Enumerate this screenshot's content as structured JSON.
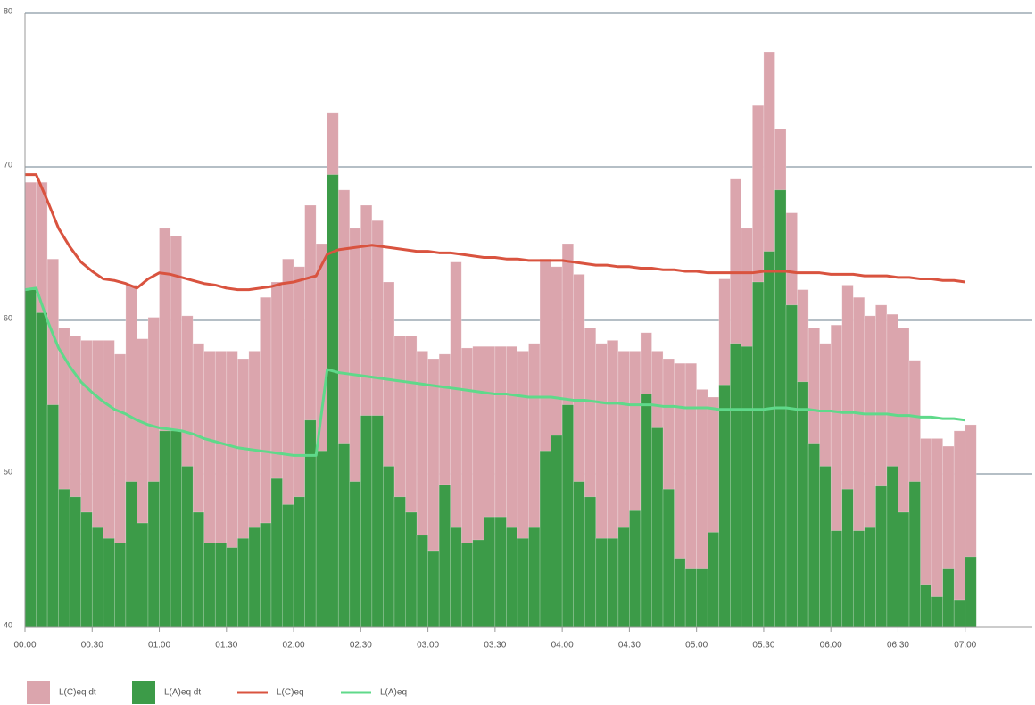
{
  "chart_data": {
    "type": "bar",
    "xlim": [
      0,
      450
    ],
    "ylim": [
      40,
      80
    ],
    "yticks": [
      40,
      50,
      60,
      70,
      80
    ],
    "xticks": [
      {
        "value": 0,
        "label": "00:00"
      },
      {
        "value": 30,
        "label": "00:30"
      },
      {
        "value": 60,
        "label": "01:00"
      },
      {
        "value": 90,
        "label": "01:30"
      },
      {
        "value": 120,
        "label": "02:00"
      },
      {
        "value": 150,
        "label": "02:30"
      },
      {
        "value": 180,
        "label": "03:00"
      },
      {
        "value": 210,
        "label": "03:30"
      },
      {
        "value": 240,
        "label": "04:00"
      },
      {
        "value": 270,
        "label": "04:30"
      },
      {
        "value": 300,
        "label": "05:00"
      },
      {
        "value": 330,
        "label": "05:30"
      },
      {
        "value": 360,
        "label": "06:00"
      },
      {
        "value": 390,
        "label": "06:30"
      },
      {
        "value": 420,
        "label": "07:00"
      }
    ],
    "grid": true,
    "bar_width": 5,
    "x": [
      0,
      5,
      10,
      15,
      20,
      25,
      30,
      35,
      40,
      45,
      50,
      55,
      60,
      65,
      70,
      75,
      80,
      85,
      90,
      95,
      100,
      105,
      110,
      115,
      120,
      125,
      130,
      135,
      140,
      145,
      150,
      155,
      160,
      165,
      170,
      175,
      180,
      185,
      190,
      195,
      200,
      205,
      210,
      215,
      220,
      225,
      230,
      235,
      240,
      245,
      250,
      255,
      260,
      265,
      270,
      275,
      280,
      285,
      290,
      295,
      300,
      305,
      310,
      315,
      320,
      325,
      330,
      335,
      340,
      345,
      350,
      355,
      360,
      365,
      370,
      375,
      380,
      385,
      390,
      395,
      400,
      405,
      410,
      415,
      420
    ],
    "series": [
      {
        "name": "L(C)eq dt",
        "type": "bar",
        "color": "#dba5ad",
        "values": [
          69,
          69,
          64,
          59.5,
          59,
          58.7,
          58.7,
          58.7,
          57.8,
          62.3,
          58.8,
          60.2,
          66,
          65.5,
          60.3,
          58.5,
          58,
          58,
          58,
          57.5,
          58,
          61.5,
          62.5,
          64,
          63.5,
          67.5,
          65,
          73.5,
          68.5,
          66,
          67.5,
          66.5,
          62.5,
          59,
          59,
          58,
          57.5,
          57.8,
          63.8,
          58.2,
          58.3,
          58.3,
          58.3,
          58.3,
          58,
          58.5,
          64,
          63.5,
          65,
          63,
          59.5,
          58.5,
          58.7,
          58,
          58,
          59.2,
          58,
          57.5,
          57.2,
          57.2,
          55.5,
          55,
          62.7,
          69.2,
          66,
          74,
          77.5,
          72.5,
          67,
          62,
          59.5,
          58.5,
          59.7,
          62.3,
          61.5,
          60.3,
          61,
          60.4,
          59.5,
          57.4,
          52.3,
          52.3,
          51.8,
          52.8,
          53.2
        ]
      },
      {
        "name": "L(A)eq dt",
        "type": "bar",
        "color": "#3c9b48",
        "values": [
          62,
          60.5,
          54.5,
          49,
          48.5,
          47.5,
          46.5,
          45.8,
          45.5,
          49.5,
          46.8,
          49.5,
          52.8,
          52.8,
          50.5,
          47.5,
          45.5,
          45.5,
          45.2,
          45.8,
          46.5,
          46.8,
          49.7,
          48,
          48.5,
          53.5,
          51.5,
          69.5,
          52,
          49.5,
          53.8,
          53.8,
          50.5,
          48.5,
          47.5,
          46,
          45,
          49.3,
          46.5,
          45.5,
          45.7,
          47.2,
          47.2,
          46.5,
          45.8,
          46.5,
          51.5,
          52.5,
          54.5,
          49.5,
          48.5,
          45.8,
          45.8,
          46.5,
          47.6,
          55.2,
          53,
          49,
          44.5,
          43.8,
          43.8,
          46.2,
          55.8,
          58.5,
          58.3,
          62.5,
          64.5,
          68.5,
          61,
          56,
          52,
          50.5,
          46.3,
          49,
          46.3,
          46.5,
          49.2,
          50.5,
          47.5,
          49.5,
          42.8,
          42,
          43.8,
          41.8,
          44.6
        ]
      },
      {
        "name": "L(C)eq",
        "type": "line",
        "color": "#d9533f",
        "values": [
          69.5,
          69.5,
          67.8,
          66,
          64.8,
          63.8,
          63.2,
          62.7,
          62.6,
          62.4,
          62.1,
          62.7,
          63.1,
          63,
          62.8,
          62.6,
          62.4,
          62.3,
          62.1,
          62,
          62,
          62.1,
          62.2,
          62.4,
          62.5,
          62.7,
          62.9,
          64.3,
          64.6,
          64.7,
          64.8,
          64.9,
          64.8,
          64.7,
          64.6,
          64.5,
          64.5,
          64.4,
          64.4,
          64.3,
          64.2,
          64.1,
          64.1,
          64,
          64,
          63.9,
          63.9,
          63.9,
          63.9,
          63.8,
          63.7,
          63.6,
          63.6,
          63.5,
          63.5,
          63.4,
          63.4,
          63.3,
          63.3,
          63.2,
          63.2,
          63.1,
          63.1,
          63.1,
          63.1,
          63.1,
          63.2,
          63.2,
          63.2,
          63.1,
          63.1,
          63.1,
          63,
          63,
          63,
          62.9,
          62.9,
          62.9,
          62.8,
          62.8,
          62.7,
          62.7,
          62.6,
          62.6,
          62.5
        ]
      },
      {
        "name": "L(A)eq",
        "type": "line",
        "color": "#5fd98a",
        "values": [
          62,
          62.1,
          60,
          58.2,
          57,
          56,
          55.3,
          54.7,
          54.2,
          53.9,
          53.5,
          53.2,
          53,
          52.9,
          52.8,
          52.6,
          52.3,
          52.1,
          51.9,
          51.7,
          51.6,
          51.5,
          51.4,
          51.3,
          51.2,
          51.2,
          51.2,
          56.8,
          56.6,
          56.5,
          56.4,
          56.3,
          56.2,
          56.1,
          56,
          55.9,
          55.8,
          55.7,
          55.6,
          55.5,
          55.4,
          55.3,
          55.2,
          55.2,
          55.1,
          55,
          55,
          55,
          54.9,
          54.8,
          54.8,
          54.7,
          54.6,
          54.6,
          54.5,
          54.5,
          54.5,
          54.4,
          54.4,
          54.3,
          54.3,
          54.3,
          54.2,
          54.2,
          54.2,
          54.2,
          54.2,
          54.3,
          54.3,
          54.2,
          54.2,
          54.1,
          54.1,
          54,
          54,
          53.9,
          53.9,
          53.9,
          53.8,
          53.8,
          53.7,
          53.7,
          53.6,
          53.6,
          53.5
        ]
      }
    ]
  }
}
